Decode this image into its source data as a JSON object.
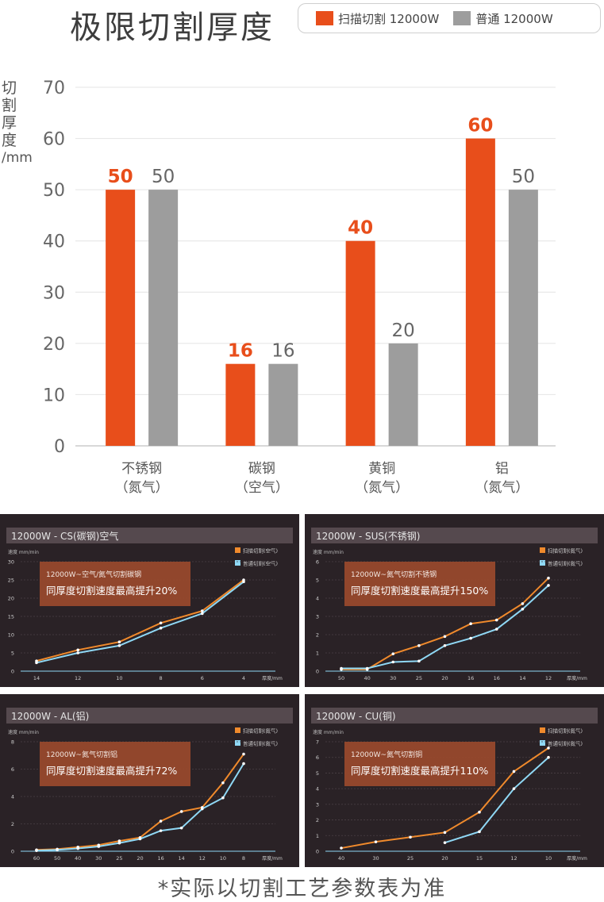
{
  "title": "极限切割厚度",
  "legend": {
    "scan": "扫描切割 12000W",
    "normal": "普通 12000W"
  },
  "colors": {
    "scan": "#e84e1b",
    "normal": "#9d9d9d"
  },
  "ylabel_chars": [
    "切",
    "割",
    "厚",
    "度",
    "/mm"
  ],
  "footnote": "*实际以切割工艺参数表为准",
  "chart_data": [
    {
      "type": "bar",
      "categories": [
        "不锈钢",
        "碳钢",
        "黄铜",
        "铝"
      ],
      "category_notes": [
        "（氮气）",
        "（空气）",
        "（氮气）",
        "（氮气）"
      ],
      "series": [
        {
          "name": "扫描切割 12000W",
          "values": [
            50,
            16,
            40,
            60
          ]
        },
        {
          "name": "普通 12000W",
          "values": [
            50,
            16,
            20,
            50
          ]
        }
      ],
      "ylabel": "切割厚度/mm",
      "ylim": [
        0,
        70
      ],
      "yticks": [
        0,
        10,
        20,
        30,
        40,
        50,
        60,
        70
      ],
      "grid": true
    },
    {
      "type": "line",
      "title": "12000W - CS(碳钢)空气",
      "ylabel": "速度 mm/min",
      "xlabel": "厚度/mm",
      "x": [
        "14",
        "12",
        "10",
        "8",
        "6",
        "4"
      ],
      "ylim": [
        0,
        30
      ],
      "yticks": [
        0,
        5,
        10,
        15,
        20,
        25,
        30
      ],
      "series": [
        {
          "name": "扫描切割(空气)",
          "values": [
            2.8,
            5.8,
            8,
            13.2,
            16.5,
            25
          ]
        },
        {
          "name": "普通切割(空气)",
          "values": [
            2.3,
            5,
            7,
            11.8,
            15.8,
            24.5
          ]
        }
      ],
      "annotation": [
        "12000W~空气/氮气切割碳钢",
        "同厚度切割速度最高提升20%"
      ]
    },
    {
      "type": "line",
      "title": "12000W - SUS(不锈钢)",
      "ylabel": "速度 mm/min",
      "xlabel": "厚度/mm",
      "x": [
        "50",
        "40",
        "30",
        "25",
        "20",
        "16",
        "16",
        "14",
        "12"
      ],
      "ylim": [
        0,
        6
      ],
      "yticks": [
        0,
        1,
        2,
        3,
        4,
        5,
        6
      ],
      "series": [
        {
          "name": "扫描切割(氮气)",
          "values": [
            0.1,
            0.1,
            0.95,
            1.4,
            1.9,
            2.6,
            2.8,
            3.7,
            5.1
          ]
        },
        {
          "name": "普通切割(氮气)",
          "values": [
            0.15,
            0.15,
            0.5,
            0.55,
            1.4,
            1.8,
            2.3,
            3.4,
            4.7
          ]
        }
      ],
      "annotation": [
        "12000W~氮气切割不锈钢",
        "同厚度切割速度最高提升150%"
      ]
    },
    {
      "type": "line",
      "title": "12000W - AL(铝)",
      "ylabel": "速度 mm/min",
      "xlabel": "厚度/mm",
      "x": [
        "60",
        "50",
        "40",
        "30",
        "25",
        "20",
        "16",
        "14",
        "12",
        "10",
        "8"
      ],
      "ylim": [
        0,
        8
      ],
      "yticks": [
        0,
        2,
        4,
        6,
        8
      ],
      "series": [
        {
          "name": "扫描切割(氮气)",
          "values": [
            0.1,
            0.15,
            0.3,
            0.45,
            0.75,
            1,
            2.2,
            2.9,
            3.2,
            5,
            7.1
          ]
        },
        {
          "name": "普通切割(氮气)",
          "values": [
            0.05,
            0.1,
            0.2,
            0.35,
            0.6,
            0.9,
            1.5,
            1.7,
            3.1,
            3.9,
            6.4
          ]
        }
      ],
      "annotation": [
        "12000W~氮气切割铝",
        "同厚度切割速度最高提升72%"
      ]
    },
    {
      "type": "line",
      "title": "12000W - CU(铜)",
      "ylabel": "速度 mm/min",
      "xlabel": "厚度/mm",
      "x": [
        "40",
        "30",
        "25",
        "20",
        "15",
        "12",
        "10"
      ],
      "ylim": [
        0,
        7
      ],
      "yticks": [
        0,
        1,
        2,
        3,
        4,
        5,
        6,
        7
      ],
      "series": [
        {
          "name": "扫描切割(氮气)",
          "values": [
            0.2,
            0.6,
            0.9,
            1.2,
            2.5,
            5.1,
            6.6
          ]
        },
        {
          "name": "普通切割(氮气)",
          "values": [
            null,
            null,
            null,
            0.55,
            1.25,
            4,
            6
          ]
        }
      ],
      "annotation": [
        "12000W~氮气切割铜",
        "同厚度切割速度最高提升110%"
      ]
    }
  ]
}
